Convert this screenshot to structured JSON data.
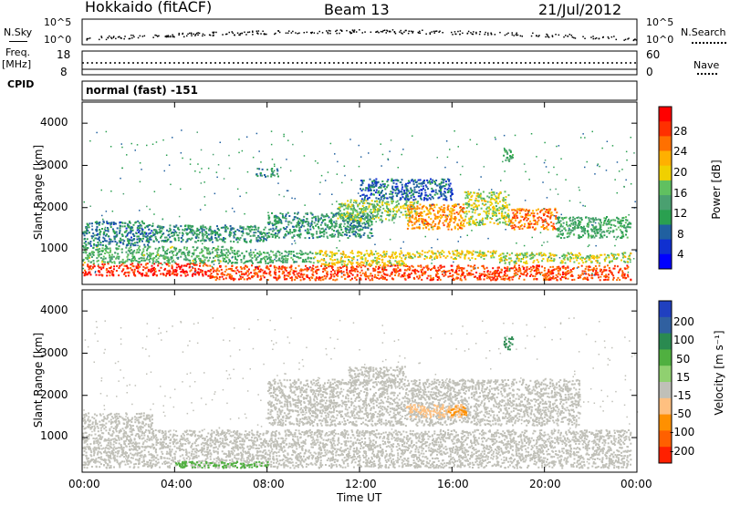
{
  "header": {
    "station": "Hokkaido (fitACF)",
    "beam": "Beam 13",
    "date": "21/Jul/2012"
  },
  "noise_panel": {
    "left_label": "N.Sky",
    "right_label": "N.Search",
    "ytick_top": "10^5",
    "ytick_bottom": "10^0"
  },
  "freq_panel": {
    "left_label_1": "Freq.",
    "left_label_2": "[MHz]",
    "left_tick_top": "18",
    "left_tick_bottom": "8",
    "right_label": "Nave",
    "right_tick_top": "60",
    "right_tick_bottom": "0"
  },
  "cpid_panel": {
    "label": "CPID",
    "text": "normal (fast) -151"
  },
  "power_panel": {
    "ylabel": "Slant Range [km]",
    "yticks": [
      "4000",
      "3000",
      "2000",
      "1000"
    ],
    "cbar_label": "Power [dB]",
    "cbar_ticks": [
      "28",
      "24",
      "20",
      "16",
      "12",
      "8",
      "4"
    ],
    "cbar_colors": [
      "#ff0000",
      "#ff3000",
      "#ff7000",
      "#ffb000",
      "#f0d000",
      "#60c060",
      "#4aa070",
      "#2aa050",
      "#2060a0",
      "#1030d0",
      "#0000ff"
    ]
  },
  "velocity_panel": {
    "ylabel": "Slant Range [km]",
    "yticks": [
      "4000",
      "3000",
      "2000",
      "1000"
    ],
    "cbar_label": "Velocity [m s⁻¹]",
    "cbar_ticks": [
      "200",
      "100",
      "50",
      "15",
      "-15",
      "-50",
      "-100",
      "-200"
    ],
    "cbar_colors": [
      "#2040c0",
      "#3060a0",
      "#2a8a50",
      "#50b040",
      "#90d070",
      "#c0c0b8",
      "#ffc080",
      "#ff9000",
      "#ff6000",
      "#ff2000"
    ]
  },
  "x_axis": {
    "ticks": [
      "00:00",
      "04:00",
      "08:00",
      "12:00",
      "16:00",
      "20:00",
      "00:00"
    ],
    "label": "Time UT"
  },
  "chart_data": {
    "type": "heatmap",
    "x_range_hours": [
      0,
      24
    ],
    "y_range_km": [
      180,
      4500
    ],
    "power_regions": [
      {
        "t0": 0.0,
        "t1": 5.5,
        "r0": 400,
        "r1": 700,
        "value_db": 30
      },
      {
        "t0": 5.5,
        "t1": 23.7,
        "r0": 300,
        "r1": 650,
        "value_db": 28
      },
      {
        "t0": 0.0,
        "t1": 6.5,
        "r0": 700,
        "r1": 1100,
        "value_db": 14
      },
      {
        "t0": 6.5,
        "t1": 10.0,
        "r0": 700,
        "r1": 1000,
        "value_db": 12
      },
      {
        "t0": 10.0,
        "t1": 14.0,
        "r0": 650,
        "r1": 1000,
        "value_db": 20
      },
      {
        "t0": 14.0,
        "t1": 18.0,
        "r0": 800,
        "r1": 1000,
        "value_db": 20
      },
      {
        "t0": 18.0,
        "t1": 23.7,
        "r0": 700,
        "r1": 950,
        "value_db": 18
      },
      {
        "t0": 0.0,
        "t1": 3.0,
        "r0": 1100,
        "r1": 1700,
        "value_db": 8
      },
      {
        "t0": 3.0,
        "t1": 8.0,
        "r0": 1200,
        "r1": 1600,
        "value_db": 10
      },
      {
        "t0": 8.0,
        "t1": 12.5,
        "r0": 1300,
        "r1": 1900,
        "value_db": 10
      },
      {
        "t0": 11.0,
        "t1": 14.5,
        "r0": 1700,
        "r1": 2200,
        "value_db": 16
      },
      {
        "t0": 14.0,
        "t1": 16.5,
        "r0": 1500,
        "r1": 2100,
        "value_db": 24
      },
      {
        "t0": 16.5,
        "t1": 18.5,
        "r0": 1600,
        "r1": 2400,
        "value_db": 18
      },
      {
        "t0": 18.5,
        "t1": 20.5,
        "r0": 1500,
        "r1": 2000,
        "value_db": 26
      },
      {
        "t0": 20.5,
        "t1": 23.7,
        "r0": 1300,
        "r1": 1800,
        "value_db": 12
      },
      {
        "t0": 12.0,
        "t1": 16.0,
        "r0": 2200,
        "r1": 2700,
        "value_db": 6
      },
      {
        "t0": 7.5,
        "t1": 8.5,
        "r0": 2750,
        "r1": 2950,
        "value_db": 10
      },
      {
        "t0": 18.2,
        "t1": 18.6,
        "r0": 3100,
        "r1": 3400,
        "value_db": 12
      }
    ],
    "velocity_regions": [
      {
        "t0": 0.0,
        "t1": 23.7,
        "r0": 300,
        "r1": 1200,
        "value_ms": 0
      },
      {
        "t0": 0.0,
        "t1": 3.0,
        "r0": 1200,
        "r1": 1600,
        "value_ms": 0
      },
      {
        "t0": 8.0,
        "t1": 21.5,
        "r0": 1300,
        "r1": 2400,
        "value_ms": 0
      },
      {
        "t0": 14.0,
        "t1": 16.5,
        "r0": 1500,
        "r1": 1800,
        "value_ms": -80
      },
      {
        "t0": 15.8,
        "t1": 16.6,
        "r0": 1550,
        "r1": 1750,
        "value_ms": -150
      },
      {
        "t0": 11.5,
        "t1": 14.0,
        "r0": 2300,
        "r1": 2700,
        "value_ms": -40
      },
      {
        "t0": 18.2,
        "t1": 18.6,
        "r0": 3100,
        "r1": 3400,
        "value_ms": 60
      },
      {
        "t0": 4.0,
        "t1": 8.0,
        "r0": 300,
        "r1": 450,
        "value_ms": 30
      }
    ]
  }
}
